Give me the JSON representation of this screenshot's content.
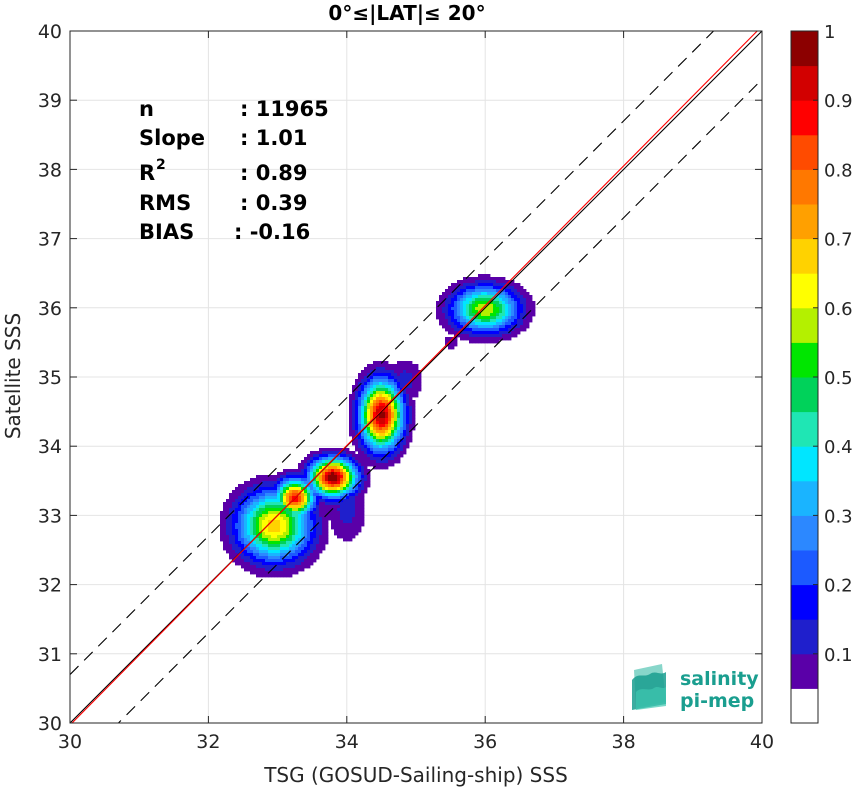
{
  "chart_data": {
    "type": "contour",
    "title": "0°≤|LAT|≤ 20°",
    "xlabel": "TSG (GOSUD-Sailing-ship) SSS",
    "ylabel": "Satellite SSS",
    "xlim": [
      30,
      40
    ],
    "ylim": [
      30,
      40
    ],
    "xticks": [
      30,
      32,
      34,
      36,
      38,
      40
    ],
    "yticks": [
      30,
      31,
      32,
      33,
      34,
      35,
      36,
      37,
      38,
      39,
      40
    ],
    "grid": true,
    "stats": [
      {
        "label": "n",
        "value": ": 11965"
      },
      {
        "label": "Slope",
        "value": ": 1.01"
      },
      {
        "label": "R²",
        "value": ": 0.89"
      },
      {
        "label": "RMS",
        "value": ": 0.39"
      },
      {
        "label": "BIAS",
        "value": ": -0.16"
      }
    ],
    "lines": [
      {
        "name": "1:1",
        "color": "#000000",
        "points": [
          [
            30,
            30
          ],
          [
            40,
            40
          ]
        ],
        "style": "solid"
      },
      {
        "name": "regression",
        "color": "#ff0000",
        "points": [
          [
            30,
            29.97
          ],
          [
            40,
            40.07
          ]
        ],
        "style": "solid"
      },
      {
        "name": "upper bound",
        "color": "#000000",
        "points": [
          [
            30,
            30.7
          ],
          [
            40,
            40.7
          ]
        ],
        "style": "dashed"
      },
      {
        "name": "lower bound",
        "color": "#000000",
        "points": [
          [
            30,
            29.3
          ],
          [
            40,
            39.3
          ]
        ],
        "style": "dashed"
      }
    ],
    "density_clusters": [
      {
        "x": 32.95,
        "y": 32.85,
        "sx": 0.35,
        "sy": 0.33,
        "peak": 0.68
      },
      {
        "x": 33.25,
        "y": 33.25,
        "sx": 0.18,
        "sy": 0.18,
        "peak": 0.88
      },
      {
        "x": 33.8,
        "y": 33.55,
        "sx": 0.22,
        "sy": 0.18,
        "peak": 1.0
      },
      {
        "x": 34.0,
        "y": 33.1,
        "sx": 0.2,
        "sy": 0.35,
        "peak": 0.12
      },
      {
        "x": 34.5,
        "y": 34.45,
        "sx": 0.2,
        "sy": 0.32,
        "peak": 0.97
      },
      {
        "x": 34.85,
        "y": 34.95,
        "sx": 0.18,
        "sy": 0.22,
        "peak": 0.12
      },
      {
        "x": 35.5,
        "y": 35.5,
        "sx": 0.08,
        "sy": 0.08,
        "peak": 0.1
      },
      {
        "x": 36.0,
        "y": 35.98,
        "sx": 0.32,
        "sy": 0.22,
        "peak": 0.6
      }
    ],
    "colorbar": {
      "ticks": [
        "0.1",
        "0.2",
        "0.3",
        "0.4",
        "0.5",
        "0.6",
        "0.7",
        "0.8",
        "0.9",
        "1"
      ],
      "colors": [
        "#ffffff",
        "#5a00a8",
        "#1f1fcc",
        "#0000ff",
        "#1c5aff",
        "#2c88ff",
        "#1ab4ff",
        "#00e6ff",
        "#1fe6b4",
        "#00d25a",
        "#00e600",
        "#b4f000",
        "#ffff00",
        "#ffd200",
        "#ffa000",
        "#ff7800",
        "#ff4b00",
        "#ff0000",
        "#d20000",
        "#8c0000"
      ]
    },
    "logo": {
      "line1": "salinity",
      "line2": "pi-mep"
    }
  }
}
